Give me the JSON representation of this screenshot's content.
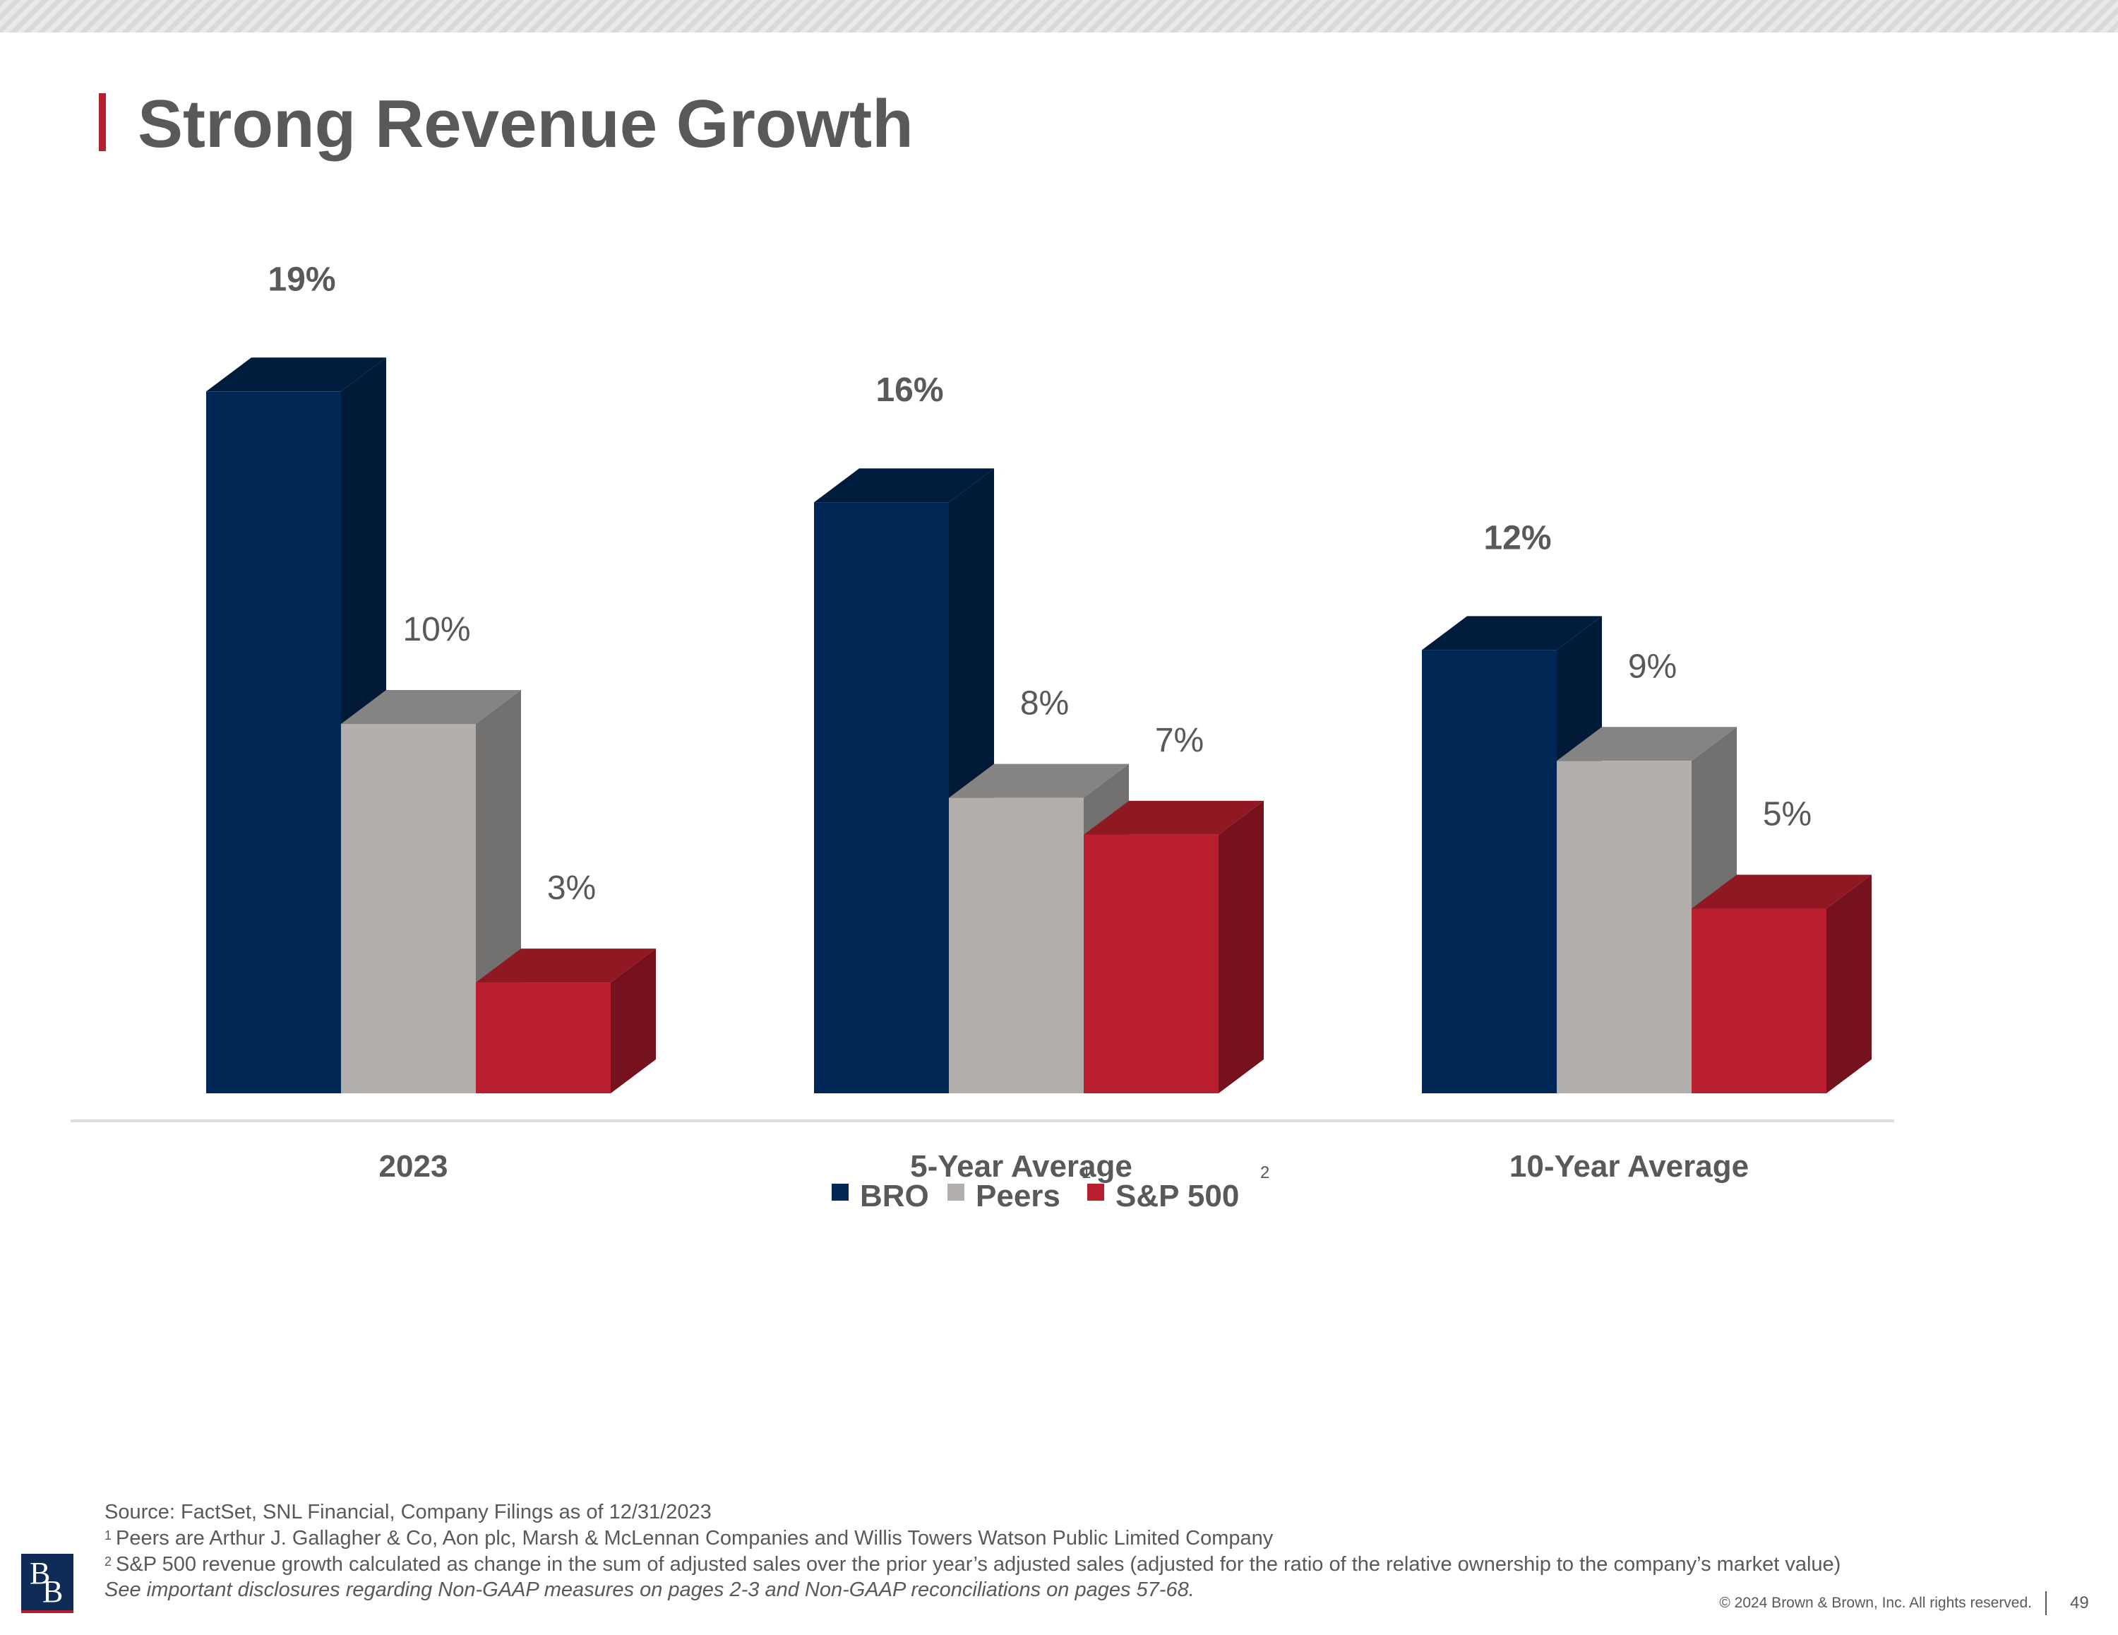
{
  "page": {
    "title": "Strong Revenue Growth",
    "page_number": "49",
    "copyright": "© 2024 Brown & Brown, Inc. All rights reserved.",
    "logo_text": [
      "B",
      "B"
    ]
  },
  "footnotes": {
    "source": "Source: FactSet, SNL Financial, Company Filings as of 12/31/2023",
    "note1_marker": "1",
    "note1": "Peers are Arthur J. Gallagher & Co, Aon plc, Marsh & McLennan Companies and Willis Towers Watson Public Limited Company",
    "note2_marker": "2",
    "note2": "S&P 500 revenue growth calculated as change in the sum of adjusted sales over the prior year’s adjusted sales (adjusted for the ratio of the relative ownership to the company’s market value)",
    "disclosure": "See important disclosures regarding Non-GAAP measures on pages 2-3 and Non-GAAP reconciliations on pages 57-68."
  },
  "chart_data": {
    "type": "bar",
    "style": "3d-clustered",
    "categories": [
      "2023",
      "5-Year Average",
      "10-Year Average"
    ],
    "series": [
      {
        "name": "BRO",
        "values": [
          19,
          16,
          12
        ],
        "labels": [
          "19%",
          "16%",
          "12%"
        ],
        "color": "#002856",
        "color_side": "#001a38",
        "color_top": "#001c3d",
        "label_bold": true
      },
      {
        "name": "Peers",
        "values": [
          10,
          8,
          9
        ],
        "labels": [
          "10%",
          "8%",
          "9%"
        ],
        "color": "#b1aeac",
        "color_side": "#72716f",
        "color_top": "#858483",
        "label_bold": false
      },
      {
        "name": "S&P 500",
        "values": [
          3,
          7,
          5
        ],
        "labels": [
          "3%",
          "7%",
          "5%"
        ],
        "color": "#b91f2e",
        "color_side": "#75121d",
        "color_top": "#8f1822",
        "label_bold": false
      }
    ],
    "footnote_markers": {
      "legend_peers": "1",
      "legend_sp500": "2"
    },
    "unit": "%",
    "legend_position": "bottom-center",
    "grid": false
  }
}
